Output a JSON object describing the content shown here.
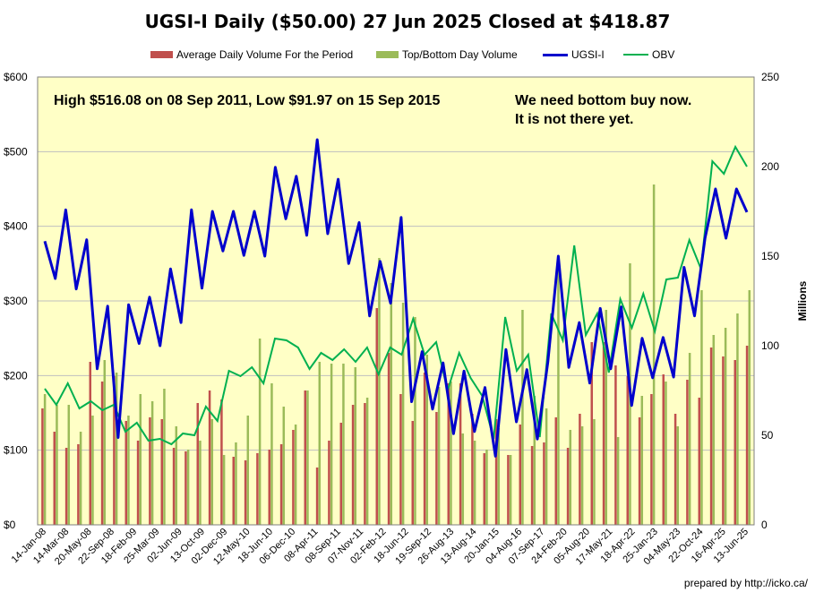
{
  "chart_data": {
    "type": "bar+line",
    "title": "UGSI-I Daily ($50.00)  27 Jun 2025 Closed at $418.87",
    "legend": [
      {
        "name": "Average Daily Volume For the Period",
        "color": "#c0504d",
        "kind": "bar"
      },
      {
        "name": "Top/Bottom Day Volume",
        "color": "#9bbb59",
        "kind": "bar"
      },
      {
        "name": "UGSI-I",
        "color": "#0000cc",
        "kind": "line"
      },
      {
        "name": "OBV",
        "color": "#00b050",
        "kind": "line"
      }
    ],
    "legend_position": "top",
    "y_left": {
      "min": 0,
      "max": 600,
      "ticks": [
        "$0",
        "$100",
        "$200",
        "$300",
        "$400",
        "$500",
        "$600"
      ]
    },
    "y_right": {
      "min": 0,
      "max": 250,
      "label": "Millions",
      "ticks": [
        "0",
        "50",
        "100",
        "150",
        "200",
        "250"
      ]
    },
    "x_tick_labels": [
      "14-Jan-08",
      "14-Mar-08",
      "20-May-08",
      "22-Sep-08",
      "18-Feb-09",
      "25-Mar-09",
      "02-Jun-09",
      "13-Oct-09",
      "02-Dec-09",
      "12-May-10",
      "18-Jun-10",
      "06-Dec-10",
      "08-Apr-11",
      "08-Sep-11",
      "07-Nov-11",
      "02-Feb-12",
      "18-Jun-12",
      "19-Sep-12",
      "26-Aug-13",
      "13-Aug-14",
      "20-Jan-15",
      "04-Aug-16",
      "07-Sep-17",
      "24-Feb-20",
      "05-Aug-20",
      "17-May-21",
      "18-Apr-22",
      "25-Jan-23",
      "04-May-23",
      "22-Oct-24",
      "16-Apr-25",
      "13-Jun-25"
    ],
    "grid": true,
    "annotations": [
      "High $516.08 on 08 Sep 2011, Low $91.97 on 15 Sep 2015",
      "We need bottom buy now. It is not there yet."
    ],
    "series": [
      {
        "name": "UGSI-I",
        "axis": "left",
        "values": [
          380,
          330,
          422,
          316,
          382,
          209,
          293,
          117,
          295,
          243,
          305,
          240,
          343,
          271,
          422,
          317,
          420,
          367,
          420,
          361,
          420,
          360,
          479,
          410,
          467,
          388,
          516,
          390,
          463,
          350,
          405,
          280,
          353,
          297,
          412,
          165,
          232,
          155,
          217,
          122,
          206,
          125,
          184,
          91.97,
          235,
          138,
          208,
          115,
          218,
          360,
          211,
          271,
          190,
          290,
          209,
          292,
          160,
          250,
          197,
          251,
          198,
          345,
          280,
          384,
          450,
          384,
          450,
          418.87
        ]
      },
      {
        "name": "OBV",
        "axis": "right",
        "values": [
          76,
          67,
          79,
          65,
          69,
          64,
          67,
          52,
          57,
          47,
          48,
          45,
          51,
          50,
          66,
          58,
          86,
          83,
          88,
          79,
          104,
          103,
          99,
          87,
          96,
          92,
          98,
          91,
          99,
          84,
          99,
          95,
          115,
          95,
          102,
          75,
          96,
          82,
          72,
          48,
          116,
          86,
          95,
          49,
          118,
          103,
          156,
          106,
          118,
          85,
          126,
          110,
          129,
          108,
          137,
          138,
          159,
          143,
          203,
          196,
          211,
          200
        ]
      },
      {
        "name": "Average Daily Volume For the Period",
        "axis": "right",
        "values": [
          65,
          52,
          43,
          45,
          91,
          80,
          83,
          58,
          47,
          60,
          59,
          43,
          41,
          68,
          75,
          70,
          38,
          36,
          40,
          42,
          45,
          53,
          75,
          32,
          47,
          57,
          67,
          68,
          121,
          96,
          73,
          58,
          85,
          63,
          79,
          79,
          62,
          40,
          59,
          39,
          56,
          44,
          46,
          60,
          43,
          62,
          102,
          102,
          89,
          83,
          60,
          73,
          84,
          62,
          81,
          71,
          99,
          94,
          92,
          100
        ]
      },
      {
        "name": "Top/Bottom Day Volume",
        "axis": "right",
        "values": [
          73,
          67,
          67,
          52,
          61,
          92,
          85,
          61,
          73,
          69,
          76,
          55,
          42,
          47,
          59,
          39,
          46,
          61,
          104,
          79,
          66,
          56,
          75,
          91,
          90,
          90,
          88,
          71,
          149,
          135,
          124,
          116,
          95,
          77,
          80,
          51,
          47,
          42,
          54,
          39,
          120,
          72,
          65,
          145,
          53,
          55,
          59,
          120,
          49,
          146,
          72,
          190,
          80,
          55,
          96,
          131,
          106,
          110,
          118,
          131
        ]
      }
    ]
  },
  "footer": {
    "credit": "prepared by http://icko.ca/"
  }
}
